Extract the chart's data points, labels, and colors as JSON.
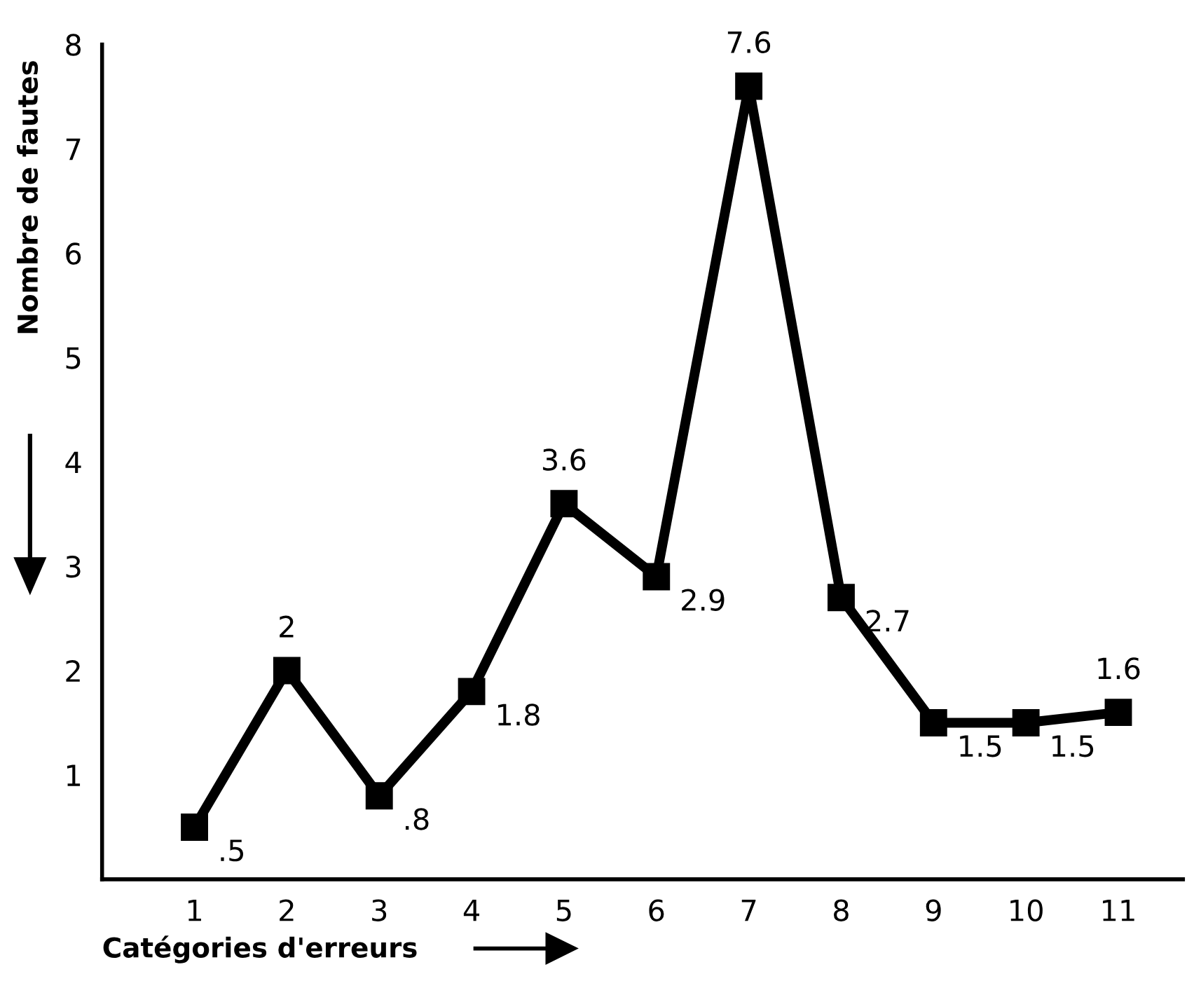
{
  "chart_data": {
    "type": "line",
    "xlabel": "Catégories d'erreurs",
    "ylabel": "Nombre de fautes",
    "categories": [
      "1",
      "2",
      "3",
      "4",
      "5",
      "6",
      "7",
      "8",
      "9",
      "10",
      "11"
    ],
    "series": [
      {
        "color": "#000000",
        "values": [
          0.5,
          2,
          0.8,
          1.8,
          3.6,
          2.9,
          7.6,
          2.7,
          1.5,
          1.5,
          1.6
        ],
        "value_labels": [
          ".5",
          "2",
          ".8",
          "1.8",
          "3.6",
          "2.9",
          "7.6",
          "2.7",
          "1.5",
          "1.5",
          "1.6"
        ]
      }
    ],
    "ylim": [
      0,
      8
    ],
    "yticks": [
      1,
      2,
      3,
      4,
      5,
      6,
      7,
      8
    ],
    "marker": "square",
    "line_style": "solid",
    "grid": false,
    "legend": false
  }
}
